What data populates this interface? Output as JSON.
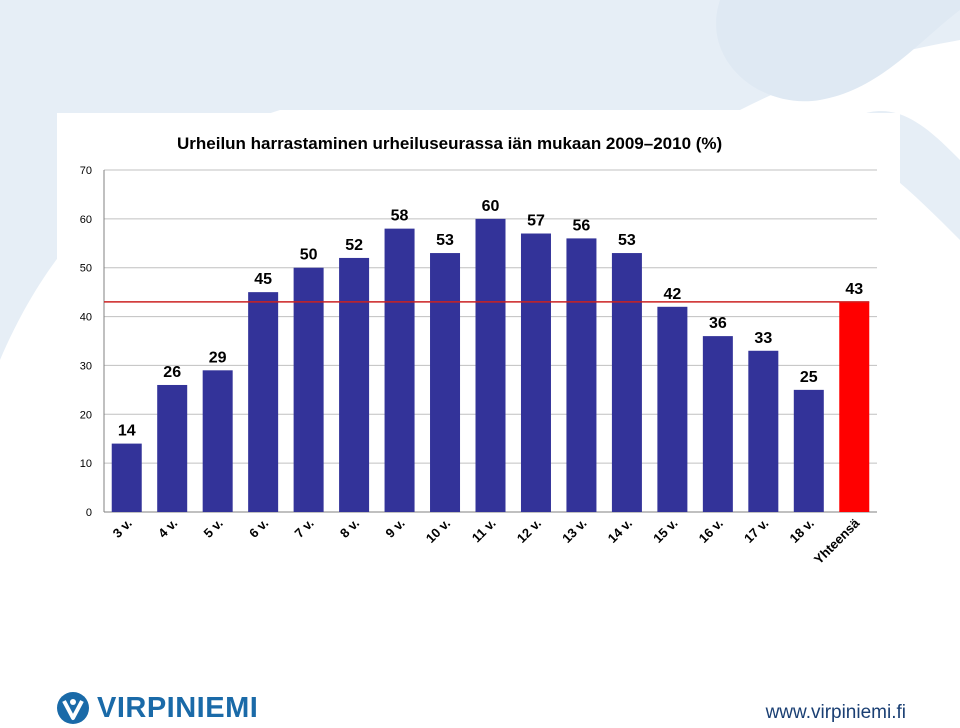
{
  "chart_data": {
    "type": "bar",
    "title": "Urheilun harrastaminen urheiluseurassa iän mukaan 2009–2010 (%)",
    "categories": [
      "3 v.",
      "4 v.",
      "5 v.",
      "6 v.",
      "7 v.",
      "8 v.",
      "9 v.",
      "10 v.",
      "11 v.",
      "12 v.",
      "13 v.",
      "14 v.",
      "15 v.",
      "16 v.",
      "17 v.",
      "18 v.",
      "Yhteensä"
    ],
    "values": [
      14,
      26,
      29,
      45,
      50,
      52,
      58,
      53,
      60,
      57,
      56,
      53,
      42,
      36,
      33,
      25,
      43
    ],
    "value_labels": [
      "14",
      "26",
      "29",
      "45",
      "50",
      "52",
      "58",
      "53",
      "60",
      "57",
      "56",
      "53",
      "42",
      "36",
      "33",
      "25",
      "43"
    ],
    "yticks": [
      "0",
      "10",
      "20",
      "30",
      "40",
      "50",
      "60",
      "70"
    ],
    "ylim": [
      0,
      70
    ],
    "reference_line": 43,
    "grid": true,
    "legend": "none",
    "colors": {
      "bar": "#333399",
      "total_bar": "#ff0000",
      "reference_line": "#cc2222",
      "grid": "#c0c0c0"
    }
  },
  "footer": {
    "logo_text": "VIRPINIEMI",
    "url": "www.virpiniemi.fi"
  },
  "colors": {
    "brand_blue": "#1a6aa8",
    "background_swirl": "#e6eef6"
  }
}
